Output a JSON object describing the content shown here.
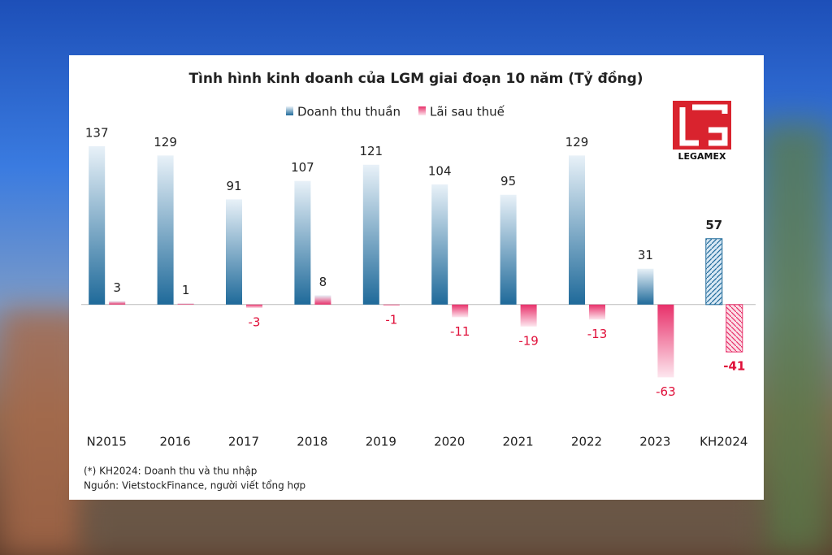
{
  "chart_data": {
    "type": "bar",
    "title": "Tình hình kinh doanh của LGM giai đoạn 10 năm (Tỷ đồng)",
    "categories": [
      "N2015",
      "2016",
      "2017",
      "2018",
      "2019",
      "2020",
      "2021",
      "2022",
      "2023",
      "KH2024"
    ],
    "series": [
      {
        "name": "Doanh thu thuần",
        "color": "#1f6a9a",
        "values": [
          137,
          129,
          91,
          107,
          121,
          104,
          95,
          129,
          31,
          57
        ]
      },
      {
        "name": "Lãi sau thuế",
        "color": "#e8306a",
        "values": [
          3,
          1,
          -3,
          8,
          -1,
          -11,
          -19,
          -13,
          -63,
          -41
        ]
      }
    ],
    "ylim": [
      -100,
      150
    ],
    "legend": "top",
    "logo": "LEGAMEX",
    "notes": [
      "(*) KH2024: Doanh thu và thu nhập",
      "Nguồn: VietstockFinance, người viết tổng hợp"
    ]
  }
}
